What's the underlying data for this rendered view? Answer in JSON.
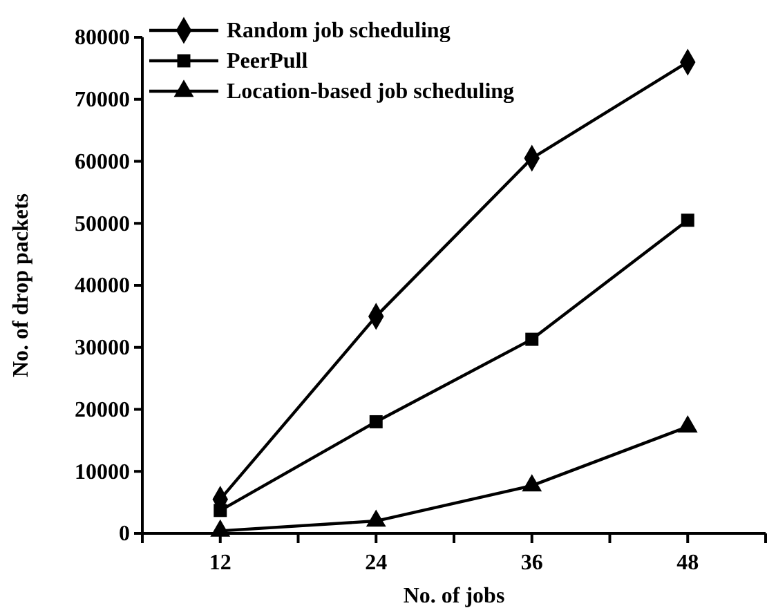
{
  "chart_data": {
    "type": "line",
    "xlabel": "No. of jobs",
    "ylabel": "No. of drop packets",
    "x": [
      12,
      24,
      36,
      48
    ],
    "xlim": [
      6,
      54
    ],
    "xticks": [
      {
        "value": 6,
        "label": null
      },
      12,
      {
        "value": 18,
        "label": null
      },
      24,
      {
        "value": 30,
        "label": null
      },
      36,
      {
        "value": 42,
        "label": null
      },
      48,
      {
        "value": 54,
        "label": null
      }
    ],
    "ylim": [
      0,
      80000
    ],
    "yticks": [
      0,
      10000,
      20000,
      30000,
      40000,
      50000,
      60000,
      70000,
      80000
    ],
    "series": [
      {
        "name": "Random job scheduling",
        "color": "#000000",
        "marker": "diamond",
        "values": [
          5500,
          35000,
          60500,
          76000
        ]
      },
      {
        "name": "PeerPull",
        "color": "#000000",
        "marker": "square",
        "values": [
          3700,
          18000,
          31300,
          50500
        ]
      },
      {
        "name": "Location-based job scheduling",
        "color": "#000000",
        "marker": "triangle",
        "values": [
          400,
          2000,
          7700,
          17200
        ]
      }
    ],
    "grid": false,
    "legend": "top left",
    "line_style": "solid"
  }
}
